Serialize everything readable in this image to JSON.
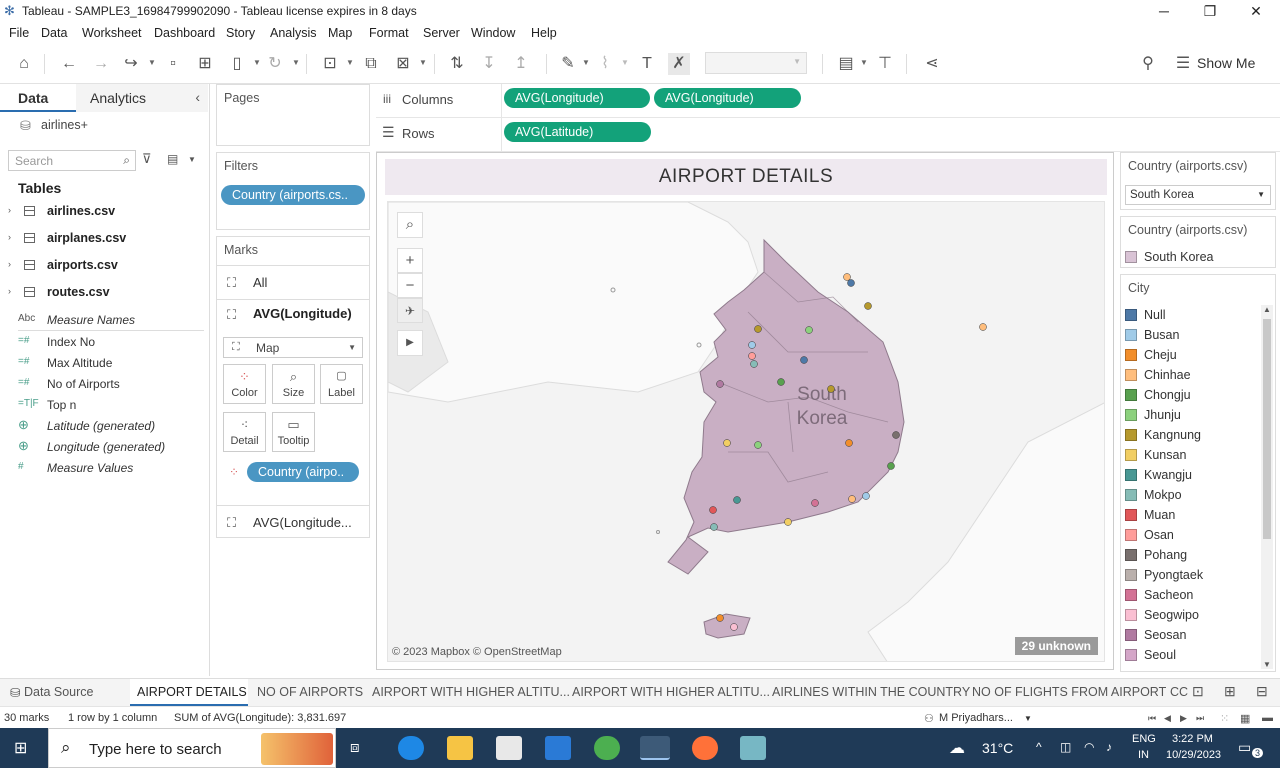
{
  "window": {
    "title": "Tableau - SAMPLE3_16984799902090 - Tableau license expires in 8 days",
    "minimize": "─",
    "restore": "❐",
    "close": "✕"
  },
  "menu": [
    "File",
    "Data",
    "Worksheet",
    "Dashboard",
    "Story",
    "Analysis",
    "Map",
    "Format",
    "Server",
    "Window",
    "Help"
  ],
  "toolbar": {
    "show_me": "Show Me"
  },
  "data_pane": {
    "tab_data": "Data",
    "tab_analytics": "Analytics",
    "datasource": "airlines+",
    "search_placeholder": "Search",
    "tables_header": "Tables",
    "tables": [
      "airlines.csv",
      "airplanes.csv",
      "airports.csv",
      "routes.csv"
    ],
    "fields": [
      {
        "icon": "Abc",
        "label": "Measure Names",
        "italic": true
      },
      {
        "icon": "=#",
        "label": "Index No",
        "italic": false
      },
      {
        "icon": "=#",
        "label": "Max Altitude",
        "italic": false
      },
      {
        "icon": "=#",
        "label": "No of Airports",
        "italic": false
      },
      {
        "icon": "=T|F",
        "label": "Top n",
        "italic": false
      },
      {
        "icon": "⊕",
        "label": "Latitude (generated)",
        "italic": true
      },
      {
        "icon": "⊕",
        "label": "Longitude (generated)",
        "italic": true
      },
      {
        "icon": "#",
        "label": "Measure Values",
        "italic": true
      }
    ]
  },
  "pages": {
    "title": "Pages"
  },
  "filters": {
    "title": "Filters",
    "pill": "Country (airports.cs.."
  },
  "marks": {
    "title": "Marks",
    "all": "All",
    "active": "AVG(Longitude)",
    "mark_type": "Map",
    "buttons": [
      "Color",
      "Size",
      "Label",
      "Detail",
      "Tooltip"
    ],
    "color_pill": "Country (airpo..",
    "second": "AVG(Longitude..."
  },
  "shelves": {
    "columns_label": "Columns",
    "rows_label": "Rows",
    "columns": [
      "AVG(Longitude)",
      "AVG(Longitude)"
    ],
    "rows": [
      "AVG(Latitude)"
    ]
  },
  "viz": {
    "title": "AIRPORT DETAILS",
    "map_label_1": "South",
    "map_label_2": "Korea",
    "attribution": "© 2023 Mapbox © OpenStreetMap",
    "unknown": "29 unknown",
    "map_controls": {
      "search": "⌕",
      "zoom_in": "+",
      "zoom_out": "−",
      "pin": "✈",
      "expand": "▶"
    }
  },
  "right_pane": {
    "filter_title": "Country (airports.csv)",
    "filter_value": "South Korea",
    "legend_title": "Country (airports.csv)",
    "legend_item": "South Korea",
    "legend_color": "#d9c3d5",
    "city_title": "City",
    "cities": [
      {
        "name": "Null",
        "color": "#4e79a7"
      },
      {
        "name": "Busan",
        "color": "#a0cbe8"
      },
      {
        "name": "Cheju",
        "color": "#f28e2b"
      },
      {
        "name": "Chinhae",
        "color": "#ffbe7d"
      },
      {
        "name": "Chongju",
        "color": "#59a14f"
      },
      {
        "name": "Jhunju",
        "color": "#8cd17d"
      },
      {
        "name": "Kangnung",
        "color": "#b6992d"
      },
      {
        "name": "Kunsan",
        "color": "#f1ce63"
      },
      {
        "name": "Kwangju",
        "color": "#499894"
      },
      {
        "name": "Mokpo",
        "color": "#86bcb6"
      },
      {
        "name": "Muan",
        "color": "#e15759"
      },
      {
        "name": "Osan",
        "color": "#ff9d9a"
      },
      {
        "name": "Pohang",
        "color": "#79706e"
      },
      {
        "name": "Pyongtaek",
        "color": "#bab0ac"
      },
      {
        "name": "Sacheon",
        "color": "#d37295"
      },
      {
        "name": "Seogwipo",
        "color": "#fabfd2"
      },
      {
        "name": "Seosan",
        "color": "#b07aa1"
      },
      {
        "name": "Seoul",
        "color": "#d4a6c8"
      }
    ]
  },
  "sheet_tabs": [
    "Data Source",
    "AIRPORT DETAILS",
    "NO OF AIRPORTS",
    "AIRPORT WITH HIGHER ALTITU...",
    "AIRPORT WITH HIGHER ALTITU...",
    "AIRLINES WITHIN THE COUNTRY",
    "NO OF FLIGHTS FROM AIRPORT",
    "CC"
  ],
  "status": {
    "marks": "30 marks",
    "rows_cols": "1 row by 1 column",
    "sum": "SUM of AVG(Longitude): 3,831.697",
    "user": "M Priyadhars..."
  },
  "taskbar": {
    "search": "Type here to search",
    "weather": "31°C",
    "lang1": "ENG",
    "lang2": "IN",
    "time": "3:22 PM",
    "date": "10/29/2023",
    "notifications": "3"
  }
}
